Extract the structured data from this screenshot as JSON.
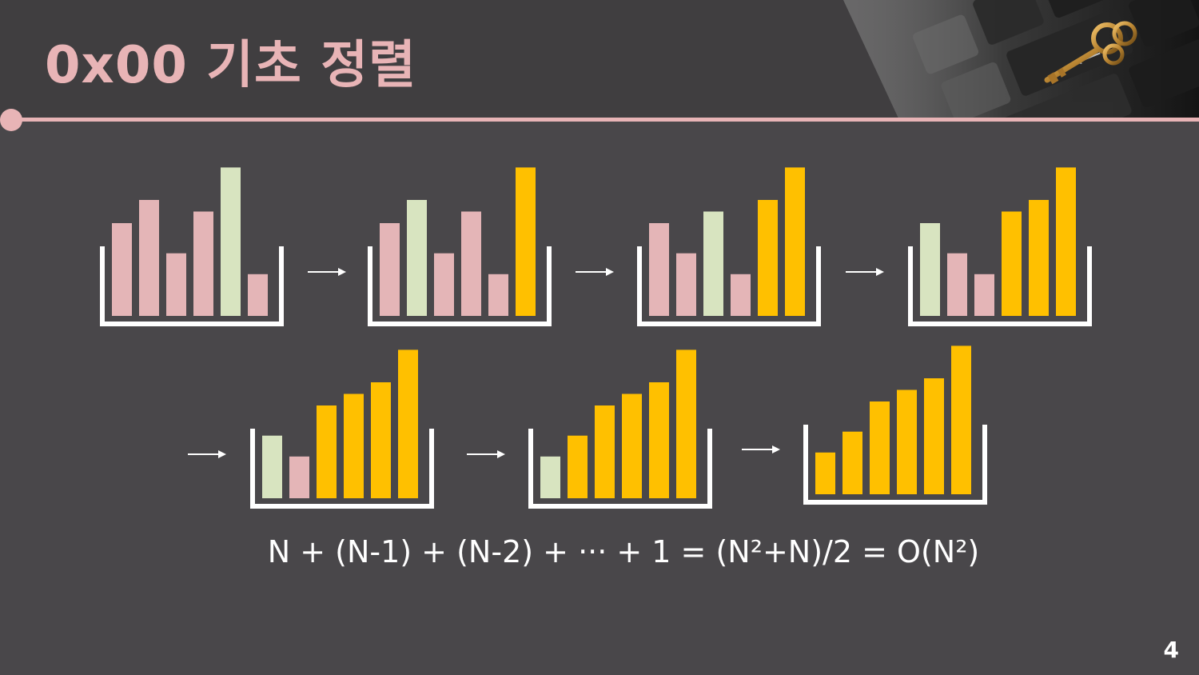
{
  "slide": {
    "title": "0x00  기초 정렬",
    "formula": "N + (N-1) + (N-2) + ··· + 1 = (N²+N)/2 = O(N²)",
    "page_number": "4"
  },
  "colors": {
    "background": "#49474a",
    "header": "#403e40",
    "accent_pink": "#e8b4b6",
    "unsorted": "#e4b5b7",
    "current_max": "#d8e4c0",
    "sorted": "#ffc000",
    "container": "#ffffff",
    "arrow": "#ffffff"
  },
  "bar_state_legend": {
    "u": "unsorted",
    "m": "current_max",
    "s": "sorted"
  },
  "steps": [
    {
      "heights": [
        4,
        5,
        2.7,
        4.5,
        6.4,
        1.8
      ],
      "states": [
        "u",
        "u",
        "u",
        "u",
        "m",
        "u"
      ]
    },
    {
      "heights": [
        4,
        5,
        2.7,
        4.5,
        1.8,
        6.4
      ],
      "states": [
        "u",
        "m",
        "u",
        "u",
        "u",
        "s"
      ]
    },
    {
      "heights": [
        4,
        2.7,
        4.5,
        1.8,
        5,
        6.4
      ],
      "states": [
        "u",
        "u",
        "m",
        "u",
        "s",
        "s"
      ]
    },
    {
      "heights": [
        4,
        2.7,
        1.8,
        4.5,
        5,
        6.4
      ],
      "states": [
        "m",
        "u",
        "u",
        "s",
        "s",
        "s"
      ]
    },
    {
      "heights": [
        2.7,
        1.8,
        4,
        4.5,
        5,
        6.4
      ],
      "states": [
        "m",
        "u",
        "s",
        "s",
        "s",
        "s"
      ]
    },
    {
      "heights": [
        1.8,
        2.7,
        4,
        4.5,
        5,
        6.4
      ],
      "states": [
        "m",
        "s",
        "s",
        "s",
        "s",
        "s"
      ]
    },
    {
      "heights": [
        1.8,
        2.7,
        4,
        4.5,
        5,
        6.4
      ],
      "states": [
        "s",
        "s",
        "s",
        "s",
        "s",
        "s"
      ]
    }
  ]
}
